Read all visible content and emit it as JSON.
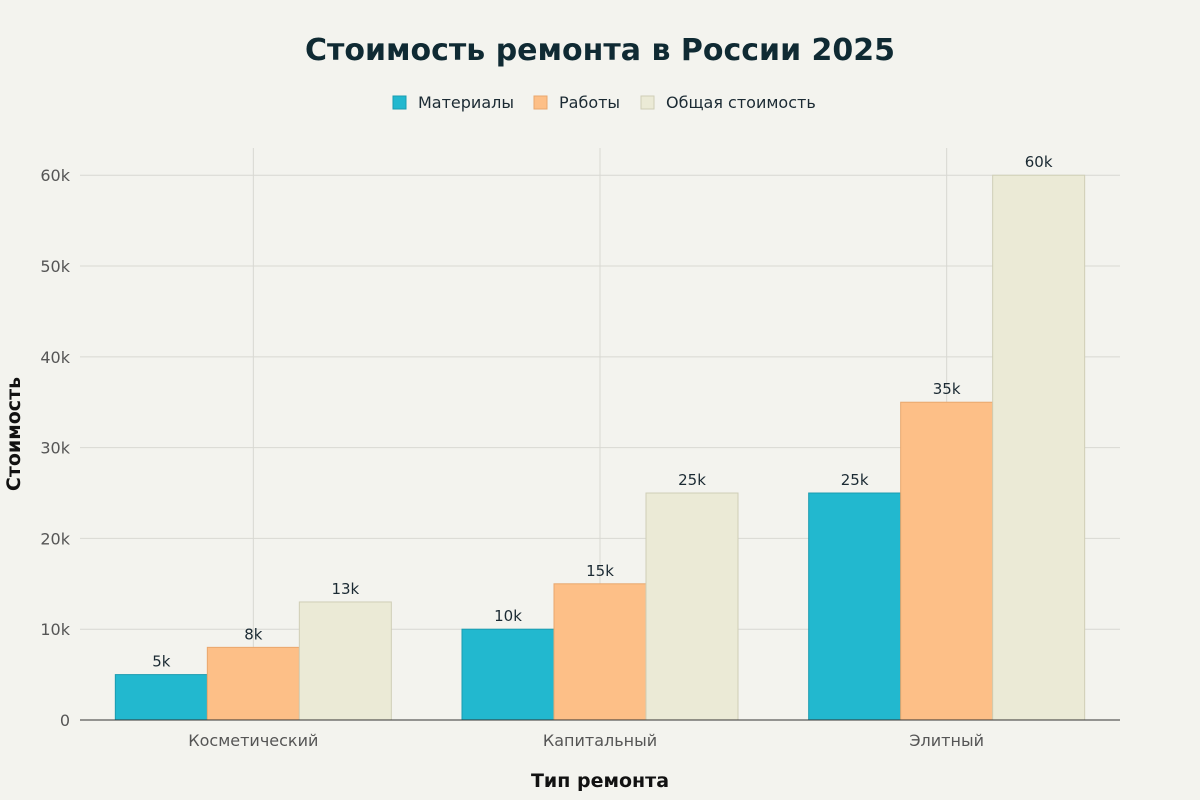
{
  "chart_data": {
    "type": "bar",
    "title": "Стоимость ремонта в России 2025",
    "xlabel": "Тип ремонта",
    "ylabel": "Стоимость",
    "categories": [
      "Косметический",
      "Капитальный",
      "Элитный"
    ],
    "series": [
      {
        "name": "Материалы",
        "values": [
          5000,
          10000,
          25000
        ],
        "labels": [
          "5k",
          "10k",
          "25k"
        ],
        "color": "#22b8cf",
        "stroke": "#1a9cb0"
      },
      {
        "name": "Работы",
        "values": [
          8000,
          15000,
          35000
        ],
        "labels": [
          "8k",
          "15k",
          "35k"
        ],
        "color": "#fdbf87",
        "stroke": "#e9a76d"
      },
      {
        "name": "Общая стоимость",
        "values": [
          13000,
          25000,
          60000
        ],
        "labels": [
          "13k",
          "25k",
          "60k"
        ],
        "color": "#ebead6",
        "stroke": "#cfceb6"
      }
    ],
    "ylim": [
      0,
      63000
    ],
    "yticks": [
      {
        "value": 0,
        "label": "0"
      },
      {
        "value": 10000,
        "label": "10k"
      },
      {
        "value": 20000,
        "label": "20k"
      },
      {
        "value": 30000,
        "label": "30k"
      },
      {
        "value": 40000,
        "label": "40k"
      },
      {
        "value": 50000,
        "label": "50k"
      },
      {
        "value": 60000,
        "label": "60k"
      }
    ],
    "grid": true,
    "legend": "top-center"
  }
}
